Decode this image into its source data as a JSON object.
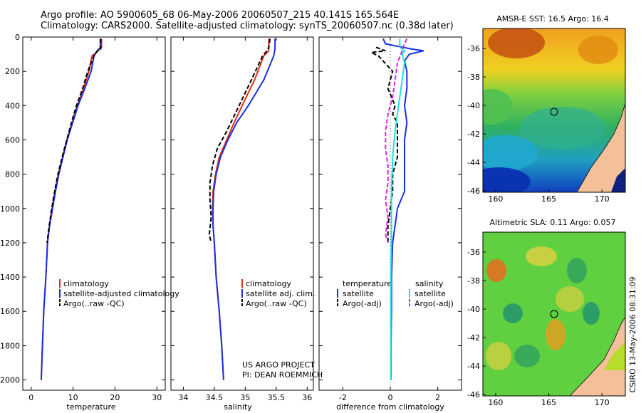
{
  "header": {
    "line1": "Argo profile: AO 5900605_68 06-May-2006 20060507_215 40.141S 165.564E",
    "line2": "Climatology: CARS2000. Satellite-adjusted climatology: synTS_20060507.nc (0.38d later)"
  },
  "credit": [
    "US ARGO PROJECT",
    "PI: DEAN ROEMMICH"
  ],
  "timestamp": "CSIRO 13-May-2006 08:31:09",
  "colors": {
    "climatology": "#e0301e",
    "satellite": "#1a2fe0",
    "argo": "#000000",
    "salinity_sat": "#20e0e0",
    "salinity_argo": "#e020e0"
  },
  "chart_data": [
    {
      "type": "line",
      "xlabel": "temperature",
      "ylabel": "",
      "xlim": [
        -2,
        32
      ],
      "ylim": [
        2060,
        0
      ],
      "xticks": [
        "0",
        "10",
        "20",
        "30"
      ],
      "yticks": [
        "0",
        "200",
        "400",
        "600",
        "800",
        "1000",
        "1200",
        "1400",
        "1600",
        "1800",
        "2000"
      ],
      "legend": [
        "climatology",
        "satellite-adjusted climatology",
        "Argo(..raw -QC)"
      ],
      "series": [
        {
          "name": "climatology",
          "points": [
            [
              16.8,
              10
            ],
            [
              16.8,
              60
            ],
            [
              16.0,
              80
            ],
            [
              14.5,
              110
            ],
            [
              13.8,
              200
            ],
            [
              12.5,
              300
            ],
            [
              11.0,
              400
            ],
            [
              9.8,
              500
            ],
            [
              8.5,
              600
            ],
            [
              7.5,
              700
            ],
            [
              6.5,
              800
            ],
            [
              5.7,
              900
            ],
            [
              5.0,
              1000
            ],
            [
              4.4,
              1100
            ],
            [
              3.9,
              1200
            ],
            [
              3.5,
              1400
            ],
            [
              3.0,
              1600
            ],
            [
              2.7,
              1800
            ],
            [
              2.4,
              2000
            ]
          ]
        },
        {
          "name": "satellite-adjusted climatology",
          "points": [
            [
              16.5,
              10
            ],
            [
              16.5,
              60
            ],
            [
              15.8,
              80
            ],
            [
              15.0,
              110
            ],
            [
              14.3,
              200
            ],
            [
              12.8,
              300
            ],
            [
              11.2,
              400
            ],
            [
              9.9,
              500
            ],
            [
              8.6,
              600
            ],
            [
              7.6,
              700
            ],
            [
              6.6,
              800
            ],
            [
              5.8,
              900
            ],
            [
              5.1,
              1000
            ],
            [
              4.4,
              1100
            ],
            [
              3.9,
              1200
            ],
            [
              3.5,
              1400
            ],
            [
              3.0,
              1600
            ],
            [
              2.7,
              1800
            ],
            [
              2.4,
              2000
            ]
          ]
        },
        {
          "name": "Argo(..raw -QC)",
          "points": [
            [
              16.6,
              10
            ],
            [
              16.6,
              70
            ],
            [
              15.8,
              80
            ],
            [
              15.0,
              110
            ],
            [
              13.5,
              200
            ],
            [
              12.3,
              300
            ],
            [
              10.8,
              400
            ],
            [
              9.6,
              500
            ],
            [
              8.5,
              600
            ],
            [
              7.4,
              700
            ],
            [
              6.4,
              800
            ],
            [
              5.6,
              900
            ],
            [
              4.9,
              1000
            ],
            [
              4.3,
              1100
            ],
            [
              3.8,
              1200
            ]
          ]
        }
      ]
    },
    {
      "type": "line",
      "xlabel": "salinity",
      "ylabel": "",
      "xlim": [
        33.8,
        36.1
      ],
      "ylim": [
        2060,
        0
      ],
      "xticks": [
        "34",
        "34.5",
        "35",
        "35.5",
        "36"
      ],
      "legend": [
        "climatology",
        "satellite adj. clim.",
        "Argo(..raw -QC)"
      ],
      "series": [
        {
          "name": "climatology",
          "points": [
            [
              35.38,
              10
            ],
            [
              35.38,
              80
            ],
            [
              35.3,
              110
            ],
            [
              35.15,
              250
            ],
            [
              34.95,
              400
            ],
            [
              34.82,
              500
            ],
            [
              34.7,
              600
            ],
            [
              34.58,
              700
            ],
            [
              34.52,
              800
            ],
            [
              34.48,
              900
            ],
            [
              34.47,
              1000
            ],
            [
              34.48,
              1100
            ],
            [
              34.5,
              1200
            ],
            [
              34.53,
              1400
            ],
            [
              34.58,
              1600
            ],
            [
              34.62,
              1800
            ],
            [
              34.65,
              2000
            ]
          ]
        },
        {
          "name": "satellite adj. clim.",
          "points": [
            [
              35.48,
              10
            ],
            [
              35.48,
              70
            ],
            [
              35.46,
              110
            ],
            [
              35.3,
              250
            ],
            [
              35.05,
              400
            ],
            [
              34.86,
              500
            ],
            [
              34.72,
              600
            ],
            [
              34.6,
              700
            ],
            [
              34.53,
              800
            ],
            [
              34.49,
              900
            ],
            [
              34.48,
              1000
            ],
            [
              34.48,
              1100
            ],
            [
              34.5,
              1200
            ],
            [
              34.53,
              1400
            ],
            [
              34.58,
              1600
            ],
            [
              34.62,
              1800
            ],
            [
              34.65,
              2000
            ]
          ]
        },
        {
          "name": "Argo(..raw -QC)",
          "points": [
            [
              35.4,
              10
            ],
            [
              35.38,
              60
            ],
            [
              35.35,
              80
            ],
            [
              35.28,
              110
            ],
            [
              35.1,
              250
            ],
            [
              34.9,
              400
            ],
            [
              34.7,
              550
            ],
            [
              34.55,
              650
            ],
            [
              34.47,
              750
            ],
            [
              34.43,
              850
            ],
            [
              34.43,
              950
            ],
            [
              34.45,
              1050
            ],
            [
              34.42,
              1150
            ],
            [
              34.45,
              1200
            ]
          ]
        }
      ]
    },
    {
      "type": "line",
      "xlabel": "difference from climatology",
      "ylabel": "",
      "xlim": [
        -3,
        3
      ],
      "ylim": [
        2060,
        0
      ],
      "xticks": [
        "-2",
        "0",
        "2"
      ],
      "legend_left_title": "temperature",
      "legend_right_title": "salinity",
      "legend": [
        "satellite",
        "Argo(-adj)",
        "satellite",
        "Argo(-adj)"
      ],
      "series": [
        {
          "name": "satellite",
          "points": [
            [
              -0.3,
              10
            ],
            [
              -0.2,
              40
            ],
            [
              0.9,
              70
            ],
            [
              1.4,
              80
            ],
            [
              0.8,
              100
            ],
            [
              0.6,
              140
            ],
            [
              0.7,
              200
            ],
            [
              0.7,
              300
            ],
            [
              0.6,
              400
            ],
            [
              0.7,
              500
            ],
            [
              0.6,
              600
            ],
            [
              0.6,
              700
            ],
            [
              0.6,
              800
            ],
            [
              0.6,
              900
            ],
            [
              0.3,
              1000
            ],
            [
              0.2,
              1100
            ],
            [
              0.1,
              1200
            ],
            [
              0.05,
              1400
            ],
            [
              0.05,
              1600
            ],
            [
              0.03,
              1800
            ],
            [
              0.03,
              2000
            ]
          ]
        },
        {
          "name": "Argo(-adj)",
          "points": [
            [
              -0.6,
              60
            ],
            [
              -0.2,
              80
            ],
            [
              -0.8,
              90
            ],
            [
              -0.5,
              110
            ],
            [
              0.1,
              200
            ],
            [
              -0.1,
              300
            ],
            [
              0.2,
              400
            ],
            [
              0.1,
              450
            ],
            [
              0.3,
              500
            ],
            [
              0.3,
              600
            ],
            [
              0.3,
              700
            ],
            [
              0.1,
              800
            ],
            [
              0.1,
              900
            ],
            [
              0.0,
              1000
            ],
            [
              -0.1,
              1100
            ],
            [
              -0.1,
              1200
            ]
          ]
        },
        {
          "name": "satellite",
          "points": [
            [
              0.4,
              10
            ],
            [
              0.4,
              60
            ],
            [
              0.6,
              80
            ],
            [
              0.5,
              100
            ],
            [
              0.6,
              150
            ],
            [
              0.5,
              250
            ],
            [
              0.4,
              350
            ],
            [
              0.3,
              450
            ],
            [
              0.2,
              550
            ],
            [
              0.1,
              700
            ],
            [
              0.05,
              900
            ],
            [
              0.05,
              1100
            ],
            [
              0.02,
              1400
            ],
            [
              0.02,
              1700
            ],
            [
              0.02,
              2000
            ]
          ]
        },
        {
          "name": "Argo(-adj)",
          "points": [
            [
              0.7,
              10
            ],
            [
              0.6,
              40
            ],
            [
              0.5,
              80
            ],
            [
              0.3,
              150
            ],
            [
              0.2,
              250
            ],
            [
              0.1,
              350
            ],
            [
              -0.1,
              450
            ],
            [
              -0.2,
              550
            ],
            [
              -0.2,
              650
            ],
            [
              -0.1,
              750
            ],
            [
              -0.1,
              850
            ],
            [
              -0.2,
              950
            ],
            [
              -0.1,
              1050
            ],
            [
              -0.2,
              1150
            ],
            [
              -0.1,
              1200
            ]
          ]
        }
      ]
    },
    {
      "type": "heatmap",
      "title": "AMSR-E SST: 16.5 Argo: 16.4",
      "xticks": [
        "160",
        "165",
        "170"
      ],
      "yticks": [
        "-36",
        "-38",
        "-40",
        "-42",
        "-44",
        "-46"
      ],
      "marker": {
        "lon": 165.5,
        "lat": -40.1
      }
    },
    {
      "type": "heatmap",
      "title": "Altimetric SLA: 0.11 Argo: 0.057",
      "xticks": [
        "160",
        "165",
        "170"
      ],
      "yticks": [
        "-36",
        "-38",
        "-40",
        "-42",
        "-44",
        "-46"
      ],
      "marker": {
        "lon": 165.5,
        "lat": -40.1
      }
    }
  ]
}
